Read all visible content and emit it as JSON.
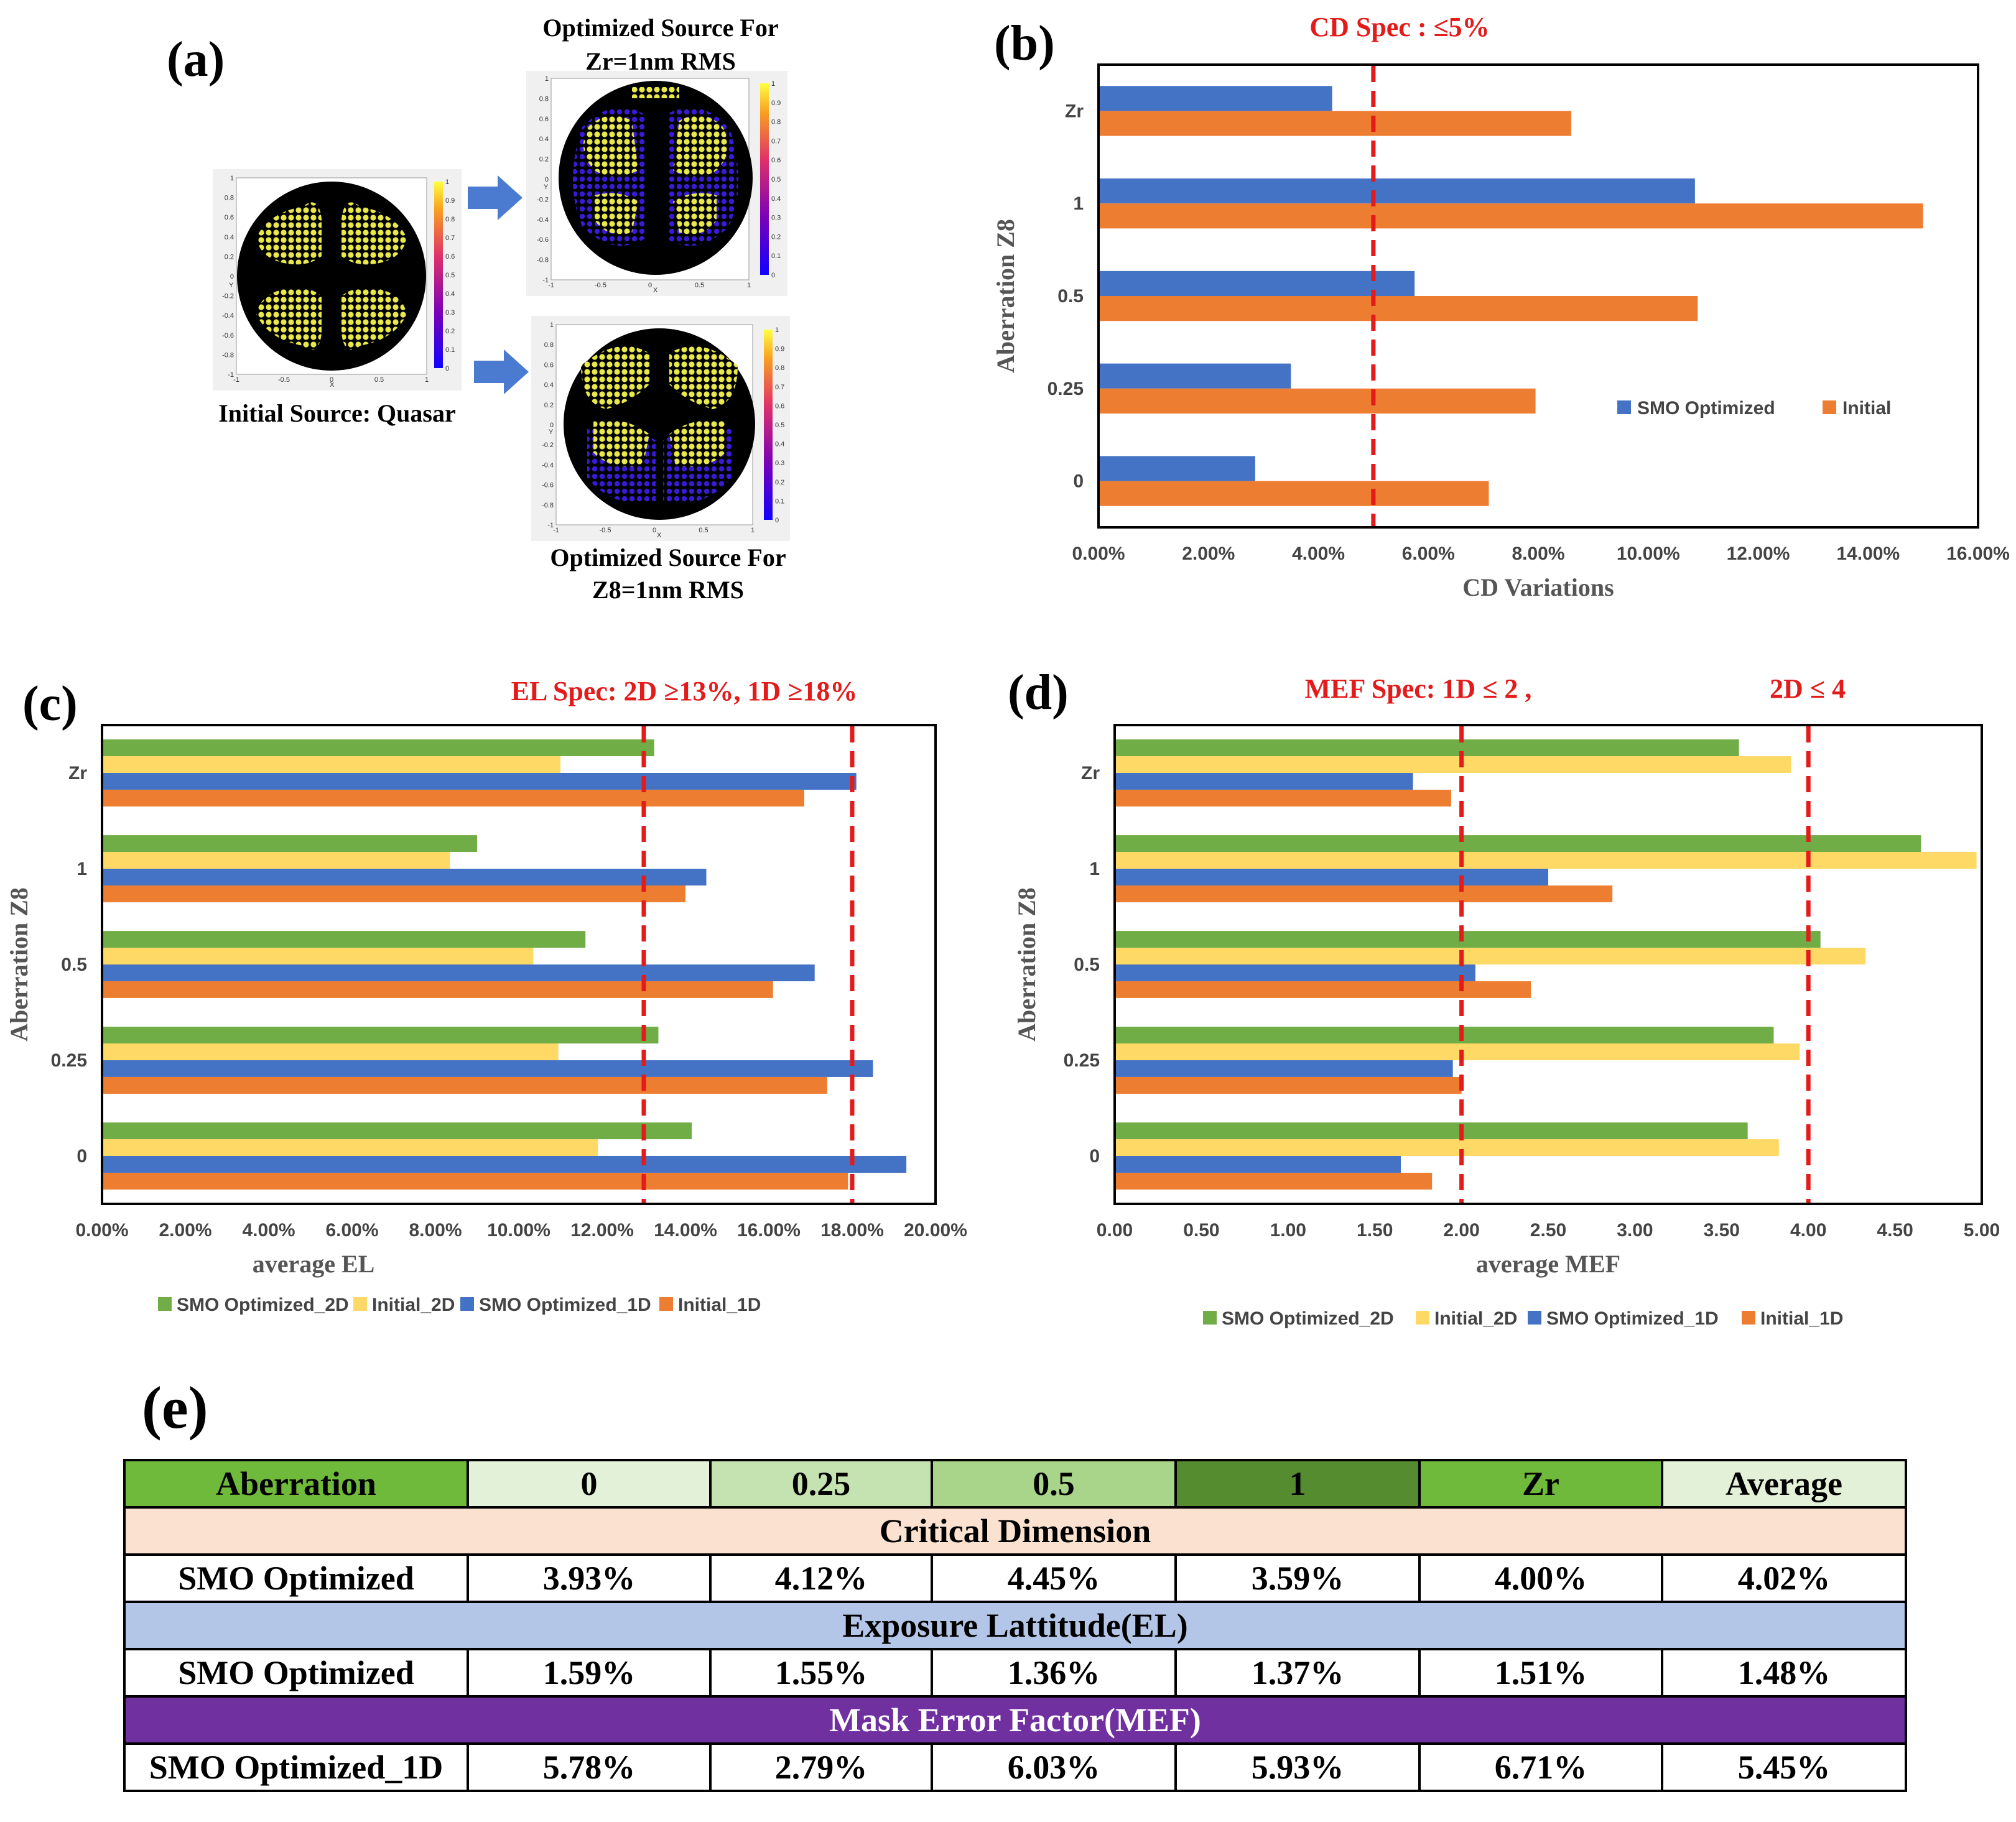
{
  "panel_labels": {
    "a": "(a)",
    "b": "(b)",
    "c": "(c)",
    "d": "(d)",
    "e": "(e)"
  },
  "panel_a": {
    "top_title_line1": "Optimized Source For",
    "top_title_line2": "Zr=1nm RMS",
    "initial_caption": "Initial Source: Quasar",
    "bottom_title_line1": "Optimized Source For",
    "bottom_title_line2": "Z8=1nm RMS",
    "mini_axis": {
      "x": "X",
      "y": "Y"
    },
    "mini_ticks": [
      "-1",
      "-0.5",
      "0",
      "0.5",
      "1"
    ],
    "mini_yticks": [
      "1",
      "0.8",
      "0.6",
      "0.4",
      "0.2",
      "0",
      "-0.2",
      "-0.4",
      "-0.6",
      "-0.8",
      "-1"
    ],
    "colorbar_ticks": [
      "1",
      "0.9",
      "0.8",
      "0.7",
      "0.6",
      "0.5",
      "0.4",
      "0.3",
      "0.2",
      "0.1",
      "0"
    ]
  },
  "chart_data": [
    {
      "id": "b",
      "type": "bar",
      "orientation": "horizontal",
      "spec_text": "CD Spec : ≤5%",
      "spec_lines": [
        5
      ],
      "categories": [
        "Zr",
        "1",
        "0.5",
        "0.25",
        "0"
      ],
      "series": [
        {
          "name": "SMO Optimized",
          "color": "#4472c4",
          "values": [
            4.25,
            10.85,
            5.75,
            3.5,
            2.85
          ]
        },
        {
          "name": "Initial",
          "color": "#ed7d31",
          "values": [
            8.6,
            15.0,
            10.9,
            7.95,
            7.1
          ]
        }
      ],
      "xlim": [
        0,
        16
      ],
      "xticks": [
        "0.00%",
        "2.00%",
        "4.00%",
        "6.00%",
        "8.00%",
        "10.00%",
        "12.00%",
        "14.00%",
        "16.00%"
      ],
      "xlabel": "CD Variations",
      "ylabel": "Aberration Z8",
      "legend_position": "right"
    },
    {
      "id": "c",
      "type": "bar",
      "orientation": "horizontal",
      "spec_text": "EL Spec: 2D ≥13%,    1D ≥18%",
      "spec_lines": [
        13,
        18
      ],
      "categories": [
        "Zr",
        "1",
        "0.5",
        "0.25",
        "0"
      ],
      "series": [
        {
          "name": "SMO Optimized_2D",
          "color": "#70ad47",
          "values": [
            13.25,
            9.0,
            11.6,
            13.35,
            14.15
          ]
        },
        {
          "name": "Initial_2D",
          "color": "#ffd966",
          "values": [
            11.0,
            8.35,
            10.35,
            10.95,
            11.9
          ]
        },
        {
          "name": "SMO Optimized_1D",
          "color": "#4472c4",
          "values": [
            18.1,
            14.5,
            17.1,
            18.5,
            19.3
          ]
        },
        {
          "name": "Initial_1D",
          "color": "#ed7d31",
          "values": [
            16.85,
            14.0,
            16.1,
            17.4,
            17.9
          ]
        }
      ],
      "xlim": [
        0,
        20
      ],
      "xticks": [
        "0.00%",
        "2.00%",
        "4.00%",
        "6.00%",
        "8.00%",
        "10.00%",
        "12.00%",
        "14.00%",
        "16.00%",
        "18.00%",
        "20.00%"
      ],
      "xlabel": "average EL",
      "ylabel": "Aberration Z8",
      "legend_position": "bottom"
    },
    {
      "id": "d",
      "type": "bar",
      "orientation": "horizontal",
      "spec_text_1": "MEF Spec:  1D ≤ 2 ,",
      "spec_text_2": "2D  ≤ 4",
      "spec_lines": [
        2,
        4
      ],
      "categories": [
        "Zr",
        "1",
        "0.5",
        "0.25",
        "0"
      ],
      "series": [
        {
          "name": "SMO Optimized_2D",
          "color": "#70ad47",
          "values": [
            3.6,
            4.65,
            4.07,
            3.8,
            3.65
          ]
        },
        {
          "name": "Initial_2D",
          "color": "#ffd966",
          "values": [
            3.9,
            4.97,
            4.33,
            3.95,
            3.83
          ]
        },
        {
          "name": "SMO Optimized_1D",
          "color": "#4472c4",
          "values": [
            1.72,
            2.5,
            2.08,
            1.95,
            1.65
          ]
        },
        {
          "name": "Initial_1D",
          "color": "#ed7d31",
          "values": [
            1.94,
            2.87,
            2.4,
            2.0,
            1.83
          ]
        }
      ],
      "xlim": [
        0,
        5
      ],
      "xticks": [
        "0.00",
        "0.50",
        "1.00",
        "1.50",
        "2.00",
        "2.50",
        "3.00",
        "3.50",
        "4.00",
        "4.50",
        "5.00"
      ],
      "xlabel": "average MEF",
      "ylabel": "Aberration Z8",
      "legend_position": "bottom"
    },
    {
      "id": "e",
      "type": "table",
      "header": [
        "Aberration",
        "0",
        "0.25",
        "0.5",
        "1",
        "Zr",
        "Average"
      ],
      "header_colors": [
        "#70ba3b",
        "#e3f1d9",
        "#c5e3b0",
        "#a9d58a",
        "#548c2f",
        "#70ba3b",
        "#e3f1d9"
      ],
      "sections": [
        {
          "title": "Critical Dimension",
          "color": "#fbe2d0",
          "row": [
            "SMO Optimized",
            "3.93%",
            "4.12%",
            "4.45%",
            "3.59%",
            "4.00%",
            "4.02%"
          ]
        },
        {
          "title": "Exposure Lattitude(EL)",
          "color": "#b4c6e7",
          "row": [
            "SMO Optimized",
            "1.59%",
            "1.55%",
            "1.36%",
            "1.37%",
            "1.51%",
            "1.48%"
          ]
        },
        {
          "title": "Mask Error Factor(MEF)",
          "color": "#7030a0",
          "title_color": "#ffffff",
          "row": [
            "SMO Optimized_1D",
            "5.78%",
            "2.79%",
            "6.03%",
            "5.93%",
            "6.71%",
            "5.45%"
          ]
        }
      ]
    }
  ]
}
